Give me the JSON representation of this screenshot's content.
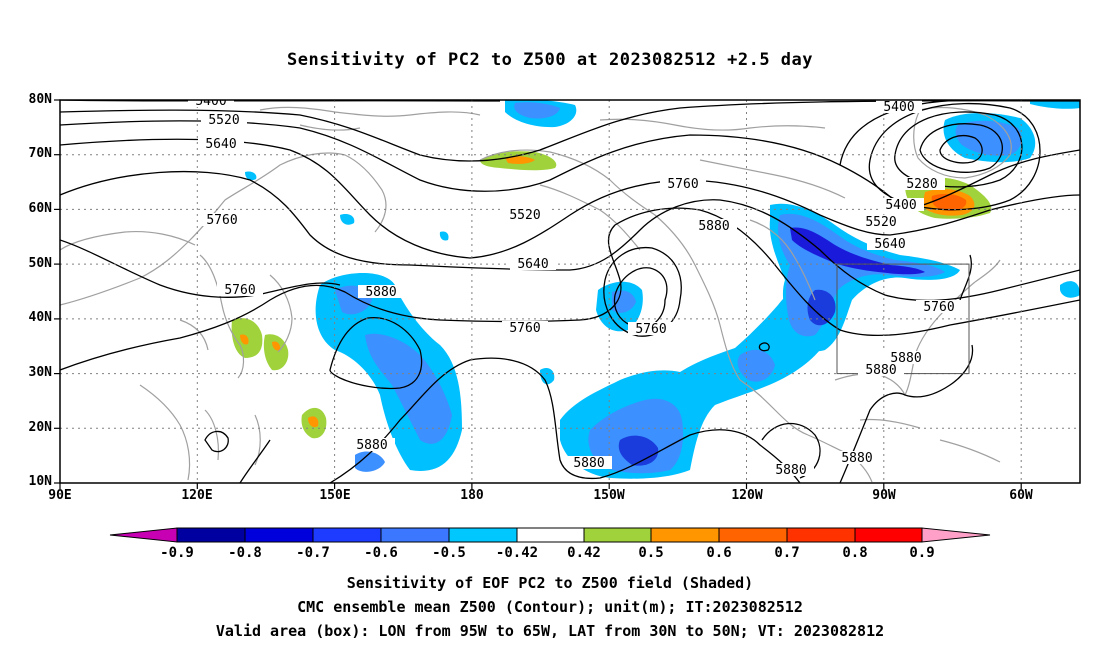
{
  "title": "Sensitivity of PC2 to Z500 at 2023082512 +2.5 day",
  "map": {
    "projection": "cylindrical equidistant",
    "lon_range": [
      "90E",
      "50W"
    ],
    "lat_range": [
      "10N",
      "80N"
    ],
    "lat_ticks": [
      "80N",
      "70N",
      "60N",
      "50N",
      "40N",
      "30N",
      "20N",
      "10N"
    ],
    "lon_ticks": [
      "90E",
      "120E",
      "150E",
      "180",
      "150W",
      "120W",
      "90W",
      "60W"
    ],
    "grid": "dotted",
    "valid_box": {
      "lon": [
        "95W",
        "65W"
      ],
      "lat": [
        "30N",
        "50N"
      ]
    },
    "contour_labels": [
      "5400",
      "5520",
      "5640",
      "5760",
      "5760",
      "5880",
      "5520",
      "5640",
      "5760",
      "5760",
      "5880",
      "5760",
      "5400",
      "5280",
      "5400",
      "5520",
      "5640",
      "5760",
      "5880",
      "5880",
      "5880",
      "5880",
      "5880",
      "5880",
      "5880"
    ],
    "colors": {
      "very_strong_negative": "#1a1adb",
      "strong_negative": "#3c6cf0",
      "moderate_negative": "#1e96ff",
      "weak_negative": "#00c0ff",
      "weak_positive": "#a0d23c",
      "moderate_positive": "#ff9600",
      "strong_positive": "#ff6400",
      "coastline": "#a0a0a0",
      "contour": "#000000"
    }
  },
  "colorbar": {
    "labels": [
      "-0.9",
      "-0.8",
      "-0.7",
      "-0.6",
      "-0.5",
      "-0.42",
      "0.42",
      "0.5",
      "0.6",
      "0.7",
      "0.8",
      "0.9"
    ],
    "colors": [
      "#c800b4",
      "#0000a0",
      "#0000dc",
      "#1e3cff",
      "#3c78ff",
      "#00a0ff",
      "#00c8ff",
      "#ffffff",
      "#a0d23c",
      "#ff9600",
      "#ff6400",
      "#ff3200",
      "#ff0000",
      "#ffa0c8"
    ]
  },
  "captions": {
    "line1": "Sensitivity of EOF PC2 to Z500 field (Shaded)",
    "line2": "CMC ensemble mean Z500 (Contour); unit(m); IT:2023082512",
    "line3": "Valid area (box): LON from 95W to 65W, LAT from 30N to 50N; VT: 2023082812"
  }
}
